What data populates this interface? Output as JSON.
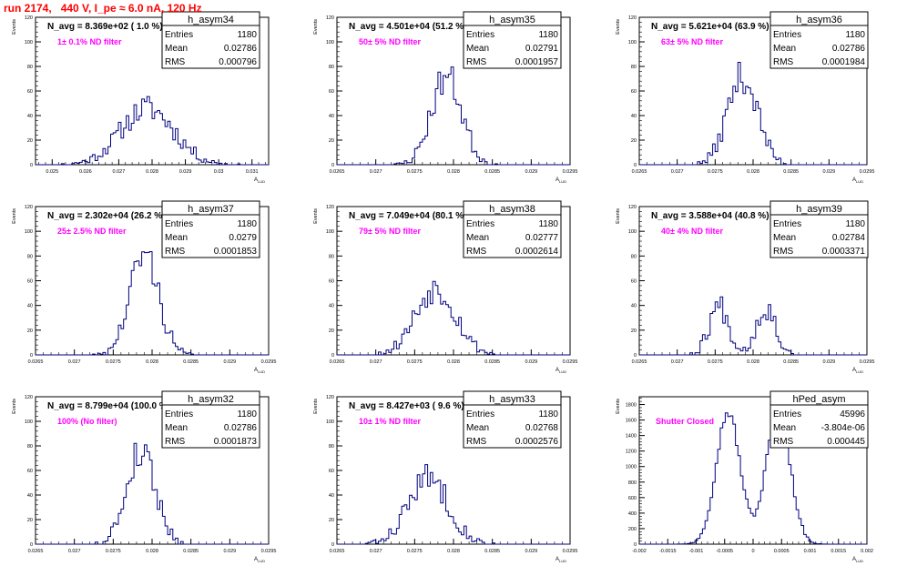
{
  "run_title": "run 2174,   440 V, I_pe ≈ 6.0 nA, 120 Hz",
  "colors": {
    "hist": "#000080",
    "filter_label": "#ff00ff",
    "run_title": "#ff0000",
    "frame": "#000000"
  },
  "chart_data": [
    {
      "type": "histogram",
      "name": "h_asym34",
      "navg": "N_avg = 8.369e+02 ( 1.0 %)",
      "filter": "1± 0.1% ND filter",
      "stats": {
        "Entries": "1180",
        "Mean": "0.02786",
        "RMS": "0.000796"
      },
      "ylabel": "Events",
      "xlabel": "A_LUD",
      "xlim": [
        0.0245,
        0.0315
      ],
      "ylim": [
        0,
        120
      ],
      "xticks": [
        "0.025",
        "0.026",
        "0.027",
        "0.028",
        "0.029",
        "0.03",
        "0.031"
      ],
      "xtick_values": [
        0.025,
        0.026,
        0.027,
        0.028,
        0.029,
        0.03,
        0.031
      ],
      "yticks": [
        0,
        20,
        40,
        60,
        80,
        100,
        120
      ],
      "gaussians": [
        {
          "mu": 0.02786,
          "sigma": 0.0008,
          "amp": 46
        }
      ],
      "seed": 11
    },
    {
      "type": "histogram",
      "name": "h_asym35",
      "navg": "N_avg = 4.501e+04 (51.2 %)",
      "filter": "50± 5% ND filter",
      "stats": {
        "Entries": "1180",
        "Mean": "0.02791",
        "RMS": "0.0001957"
      },
      "ylabel": "Events",
      "xlabel": "A_LUD",
      "xlim": [
        0.0265,
        0.0295
      ],
      "ylim": [
        0,
        120
      ],
      "xticks": [
        "0.0265",
        "0.027",
        "0.0275",
        "0.028",
        "0.0285",
        "0.029",
        "0.0295"
      ],
      "xtick_values": [
        0.0265,
        0.027,
        0.0275,
        0.028,
        0.0285,
        0.029,
        0.0295
      ],
      "yticks": [
        0,
        20,
        40,
        60,
        80,
        100,
        120
      ],
      "gaussians": [
        {
          "mu": 0.02791,
          "sigma": 0.000196,
          "amp": 72
        }
      ],
      "seed": 23
    },
    {
      "type": "histogram",
      "name": "h_asym36",
      "navg": "N_avg = 5.621e+04 (63.9 %)",
      "filter": "63± 5% ND filter",
      "stats": {
        "Entries": "1180",
        "Mean": "0.02786",
        "RMS": "0.0001984"
      },
      "ylabel": "Events",
      "xlabel": "A_LUD",
      "xlim": [
        0.0265,
        0.0295
      ],
      "ylim": [
        0,
        120
      ],
      "xticks": [
        "0.0265",
        "0.027",
        "0.0275",
        "0.028",
        "0.0285",
        "0.029",
        "0.0295"
      ],
      "xtick_values": [
        0.0265,
        0.027,
        0.0275,
        0.028,
        0.0285,
        0.029,
        0.0295
      ],
      "yticks": [
        0,
        20,
        40,
        60,
        80,
        100,
        120
      ],
      "gaussians": [
        {
          "mu": 0.02786,
          "sigma": 0.000198,
          "amp": 72
        }
      ],
      "seed": 37
    },
    {
      "type": "histogram",
      "name": "h_asym37",
      "navg": "N_avg = 2.302e+04 (26.2 %)",
      "filter": "25± 2.5% ND filter",
      "stats": {
        "Entries": "1180",
        "Mean": "0.0279",
        "RMS": "0.0001853"
      },
      "ylabel": "Events",
      "xlabel": "A_LUD",
      "xlim": [
        0.0265,
        0.0295
      ],
      "ylim": [
        0,
        120
      ],
      "xticks": [
        "0.0265",
        "0.027",
        "0.0275",
        "0.028",
        "0.0285",
        "0.029",
        "0.0295"
      ],
      "xtick_values": [
        0.0265,
        0.027,
        0.0275,
        0.028,
        0.0285,
        0.029,
        0.0295
      ],
      "yticks": [
        0,
        20,
        40,
        60,
        80,
        100,
        120
      ],
      "gaussians": [
        {
          "mu": 0.0279,
          "sigma": 0.000185,
          "amp": 82
        }
      ],
      "seed": 41
    },
    {
      "type": "histogram",
      "name": "h_asym38",
      "navg": "N_avg = 7.049e+04 (80.1 %)",
      "filter": "79± 5% ND filter",
      "stats": {
        "Entries": "1180",
        "Mean": "0.02777",
        "RMS": "0.0002614"
      },
      "ylabel": "Events",
      "xlabel": "A_LUD",
      "xlim": [
        0.0265,
        0.0295
      ],
      "ylim": [
        0,
        120
      ],
      "xticks": [
        "0.0265",
        "0.027",
        "0.0275",
        "0.028",
        "0.0285",
        "0.029",
        "0.0295"
      ],
      "xtick_values": [
        0.0265,
        0.027,
        0.0275,
        0.028,
        0.0285,
        0.029,
        0.0295
      ],
      "yticks": [
        0,
        20,
        40,
        60,
        80,
        100,
        120
      ],
      "gaussians": [
        {
          "mu": 0.02777,
          "sigma": 0.00026,
          "amp": 54
        }
      ],
      "seed": 53
    },
    {
      "type": "histogram",
      "name": "h_asym39",
      "navg": "N_avg = 3.588e+04 (40.8 %)",
      "filter": "40± 4% ND filter",
      "stats": {
        "Entries": "1180",
        "Mean": "0.02784",
        "RMS": "0.0003371"
      },
      "ylabel": "Events",
      "xlabel": "A_LUD",
      "xlim": [
        0.0265,
        0.0295
      ],
      "ylim": [
        0,
        120
      ],
      "xticks": [
        "0.0265",
        "0.027",
        "0.0275",
        "0.028",
        "0.0285",
        "0.029",
        "0.0295"
      ],
      "xtick_values": [
        0.0265,
        0.027,
        0.0275,
        0.028,
        0.0285,
        0.029,
        0.0295
      ],
      "yticks": [
        0,
        20,
        40,
        60,
        80,
        100,
        120
      ],
      "gaussians": [
        {
          "mu": 0.02755,
          "sigma": 0.00013,
          "amp": 40
        },
        {
          "mu": 0.02817,
          "sigma": 0.00013,
          "amp": 38
        }
      ],
      "seed": 67
    },
    {
      "type": "histogram",
      "name": "h_asym32",
      "navg": "N_avg = 8.799e+04 (100.0 %)",
      "filter": "100% (No filter)",
      "stats": {
        "Entries": "1180",
        "Mean": "0.02786",
        "RMS": "0.0001873"
      },
      "ylabel": "Events",
      "xlabel": "A_LUD",
      "xlim": [
        0.0265,
        0.0295
      ],
      "ylim": [
        0,
        120
      ],
      "xticks": [
        "0.0265",
        "0.027",
        "0.0275",
        "0.028",
        "0.0285",
        "0.029",
        "0.0295"
      ],
      "xtick_values": [
        0.0265,
        0.027,
        0.0275,
        0.028,
        0.0285,
        0.029,
        0.0295
      ],
      "yticks": [
        0,
        20,
        40,
        60,
        80,
        100,
        120
      ],
      "gaussians": [
        {
          "mu": 0.02786,
          "sigma": 0.000187,
          "amp": 76
        }
      ],
      "seed": 79
    },
    {
      "type": "histogram",
      "name": "h_asym33",
      "navg": "N_avg = 8.427e+03 ( 9.6 %)",
      "filter": "10± 1% ND filter",
      "stats": {
        "Entries": "1180",
        "Mean": "0.02768",
        "RMS": "0.0002576"
      },
      "ylabel": "Events",
      "xlabel": "A_LUD",
      "xlim": [
        0.0265,
        0.0295
      ],
      "ylim": [
        0,
        120
      ],
      "xticks": [
        "0.0265",
        "0.027",
        "0.0275",
        "0.028",
        "0.0285",
        "0.029",
        "0.0295"
      ],
      "xtick_values": [
        0.0265,
        0.027,
        0.0275,
        0.028,
        0.0285,
        0.029,
        0.0295
      ],
      "yticks": [
        0,
        20,
        40,
        60,
        80,
        100,
        120
      ],
      "gaussians": [
        {
          "mu": 0.02768,
          "sigma": 0.00026,
          "amp": 54
        }
      ],
      "seed": 83
    },
    {
      "type": "histogram",
      "name": "hPed_asym",
      "navg": "",
      "filter": "Shutter Closed",
      "stats": {
        "Entries": "45996",
        "Mean": "-3.804e-06",
        "RMS": "0.000445"
      },
      "ylabel": "Events",
      "xlabel": "A_LUD",
      "xlim": [
        -0.002,
        0.002
      ],
      "ylim": [
        0,
        1900
      ],
      "xticks": [
        "-0.002",
        "-0.0015",
        "-0.001",
        "-0.0005",
        "0",
        "0.0005",
        "0.001",
        "0.0015",
        "0.002"
      ],
      "xtick_values": [
        -0.002,
        -0.0015,
        -0.001,
        -0.0005,
        0,
        0.0005,
        0.001,
        0.0015,
        0.002
      ],
      "yticks": [
        0,
        200,
        400,
        600,
        800,
        1000,
        1200,
        1400,
        1600,
        1800
      ],
      "gaussians": [
        {
          "mu": -0.00044,
          "sigma": 0.00021,
          "amp": 1700
        },
        {
          "mu": 0.00044,
          "sigma": 0.00021,
          "amp": 1720
        }
      ],
      "seed": 97
    }
  ]
}
